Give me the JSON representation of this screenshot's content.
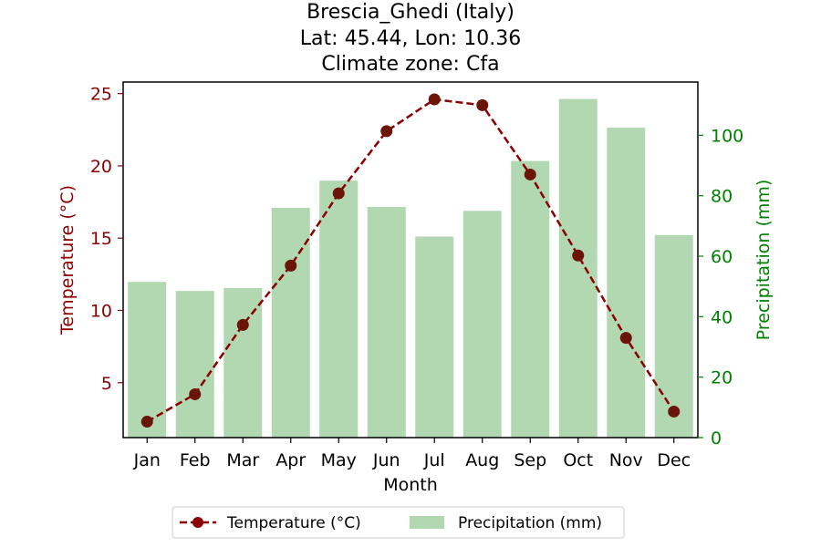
{
  "chart_data": {
    "type": "bar+line",
    "title_lines": [
      "Brescia_Ghedi (Italy)",
      "Lat: 45.44, Lon: 10.36",
      "Climate zone: Cfa"
    ],
    "xlabel": "Month",
    "ylabel_left": "Temperature (°C)",
    "ylabel_right": "Precipitation (mm)",
    "categories": [
      "Jan",
      "Feb",
      "Mar",
      "Apr",
      "May",
      "Jun",
      "Jul",
      "Aug",
      "Sep",
      "Oct",
      "Nov",
      "Dec"
    ],
    "temperature": {
      "name": "Temperature (°C)",
      "values": [
        2.3,
        4.2,
        9.0,
        13.1,
        18.1,
        22.4,
        24.6,
        24.2,
        19.4,
        13.8,
        8.1,
        3.0
      ],
      "color": "#8b0000"
    },
    "precipitation": {
      "name": "Precipitation (mm)",
      "values": [
        51.5,
        48.5,
        49.5,
        76.0,
        85.0,
        76.3,
        66.5,
        75.0,
        91.5,
        112.0,
        102.5,
        67.0
      ],
      "color": "#b2d8b2"
    },
    "left_axis": {
      "ylim": [
        1.2,
        25.8
      ],
      "ticks": [
        5,
        10,
        15,
        20,
        25
      ],
      "color": "#8b0000"
    },
    "right_axis": {
      "ylim": [
        0,
        117.6
      ],
      "ticks": [
        0,
        20,
        40,
        60,
        80,
        100
      ],
      "color": "#008000"
    },
    "legend_position": "bottom-center"
  }
}
